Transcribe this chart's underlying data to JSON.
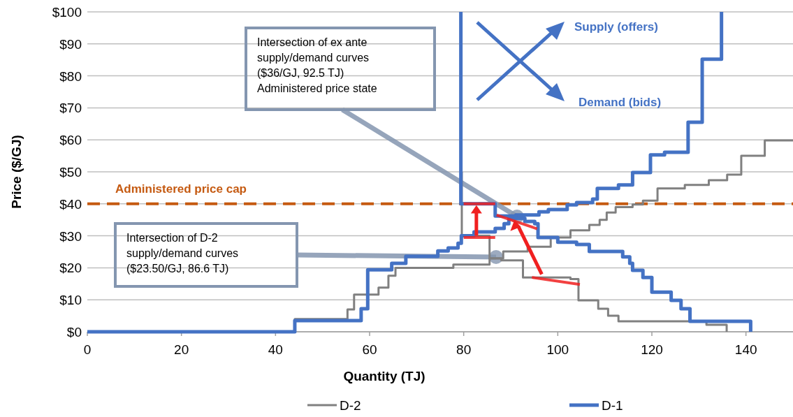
{
  "chart_data": {
    "type": "step",
    "xlabel": "Quantity (TJ)",
    "ylabel": "Price ($/GJ)",
    "xlim": [
      0,
      150
    ],
    "ylim": [
      0,
      100
    ],
    "xticks": [
      0,
      20,
      40,
      60,
      80,
      100,
      120,
      140
    ],
    "yticks": [
      {
        "value": 0,
        "label": "$0"
      },
      {
        "value": 10,
        "label": "$10"
      },
      {
        "value": 20,
        "label": "$20"
      },
      {
        "value": 30,
        "label": "$30"
      },
      {
        "value": 40,
        "label": "$40"
      },
      {
        "value": 50,
        "label": "$50"
      },
      {
        "value": 60,
        "label": "$60"
      },
      {
        "value": 70,
        "label": "$70"
      },
      {
        "value": 80,
        "label": "$80"
      },
      {
        "value": 90,
        "label": "$90"
      },
      {
        "value": 100,
        "label": "$100"
      }
    ],
    "grid": "y",
    "legend": "bottom",
    "series": [
      {
        "name": "D-2",
        "color": "#808080",
        "x": [
          0,
          44.1,
          55.3,
          56.7,
          61.9,
          64,
          65.5,
          77.8,
          85.5,
          88.4,
          93.6,
          98.5,
          102.7,
          106.7,
          108.9,
          110.4,
          112.3,
          115.9,
          118.1,
          121.2,
          127,
          132.1,
          136,
          139,
          144,
          150
        ],
        "values": [
          0,
          4,
          7,
          11.6,
          13.8,
          17.5,
          20,
          21,
          22.9,
          25.1,
          26.6,
          29.5,
          31.7,
          33.4,
          35,
          37.3,
          39,
          39.8,
          41,
          44.8,
          45.9,
          47.4,
          49.1,
          55,
          59.8,
          59.8
        ]
      },
      {
        "color": "#808080",
        "x": [
          79.6,
          79.6,
          85.5,
          88,
          92.6,
          102.7,
          104.4,
          108.6,
          110.7,
          112.9,
          131.6,
          135.9
        ],
        "values": [
          50,
          30,
          23,
          22.3,
          17,
          16.5,
          9.8,
          7.2,
          5,
          3.3,
          2.2,
          0
        ]
      },
      {
        "name": "D-1",
        "color": "#4472c4",
        "x": [
          0,
          44.1,
          58.2,
          59.6,
          64.7,
          67.7,
          74.5,
          76.7,
          78.8,
          79.5,
          82.2,
          86.7,
          88.6,
          89.6,
          91.1,
          96,
          98,
          102,
          104,
          107.4,
          108.4,
          112.9,
          115.9,
          119.7,
          122.7,
          127.7,
          130.7,
          134.8
        ],
        "values": [
          0,
          3.5,
          7.2,
          19.4,
          21.4,
          23.6,
          25.3,
          26.2,
          27.7,
          30,
          31.2,
          32.3,
          33.8,
          35.4,
          36.5,
          37.5,
          38.2,
          39.7,
          40.4,
          41.5,
          44.8,
          45.9,
          49.8,
          55.3,
          56.1,
          65.5,
          85.2,
          100
        ]
      },
      {
        "color": "#4472c4",
        "x": [
          79.4,
          79.4,
          86.7,
          91.1,
          93,
          95.1,
          95.8,
          100,
          104,
          106.7,
          113.8,
          115.3,
          115.9,
          118.1,
          120,
          124.1,
          126.2,
          128.1,
          141
        ],
        "values": [
          100,
          40,
          36.2,
          35.5,
          34.5,
          33.8,
          29.5,
          28,
          27.3,
          25.1,
          23.4,
          21.4,
          19.2,
          17,
          12.4,
          9.8,
          7.2,
          3.3,
          0
        ]
      }
    ],
    "ref_lines": [
      {
        "axis": "y",
        "value": 40,
        "label": "Administered price cap",
        "color": "#c55a11",
        "line_style": "dashed"
      }
    ],
    "annotations": [
      "Supply (offers)",
      "Demand (bids)",
      "Intersection of ex ante\nsupply/demand curves\n($36/GJ, 92.5 TJ)\nAdministered price state",
      "Intersection of D-2\nsupply/demand curves\n($23.50/GJ, 86.6 TJ)"
    ]
  }
}
